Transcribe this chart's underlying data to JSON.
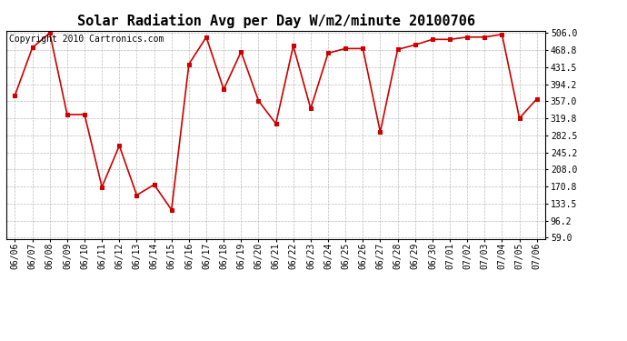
{
  "title": "Solar Radiation Avg per Day W/m2/minute 20100706",
  "copyright": "Copyright 2010 Cartronics.com",
  "dates": [
    "06/06",
    "06/07",
    "06/08",
    "06/09",
    "06/10",
    "06/11",
    "06/12",
    "06/13",
    "06/14",
    "06/15",
    "06/16",
    "06/17",
    "06/18",
    "06/19",
    "06/20",
    "06/21",
    "06/22",
    "06/23",
    "06/24",
    "06/25",
    "06/26",
    "06/27",
    "06/28",
    "06/29",
    "06/30",
    "07/01",
    "07/02",
    "07/03",
    "07/04",
    "07/05",
    "07/06"
  ],
  "values": [
    370,
    474,
    506,
    328,
    328,
    170,
    260,
    152,
    175,
    120,
    438,
    497,
    383,
    465,
    358,
    308,
    478,
    341,
    462,
    472,
    472,
    290,
    470,
    480,
    492,
    492,
    497,
    497,
    503,
    320,
    362
  ],
  "line_color": "#cc0000",
  "marker": "s",
  "marker_color": "#cc0000",
  "bg_color": "#ffffff",
  "grid_color": "#aaaaaa",
  "yticks": [
    59.0,
    96.2,
    133.5,
    170.8,
    208.0,
    245.2,
    282.5,
    319.8,
    357.0,
    394.2,
    431.5,
    468.8,
    506.0
  ],
  "ymin": 59.0,
  "ymax": 506.0,
  "title_fontsize": 11,
  "tick_fontsize": 7,
  "copyright_fontsize": 7
}
